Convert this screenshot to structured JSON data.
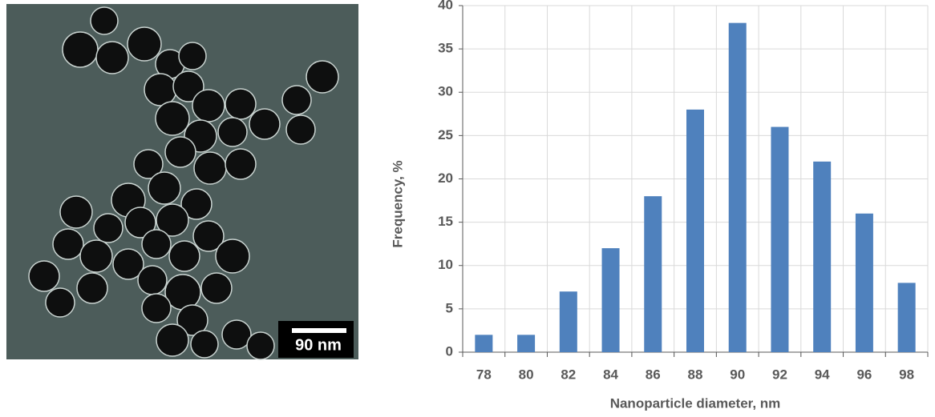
{
  "micrograph": {
    "scale_bar_label": "90 nm"
  },
  "chart_data": {
    "type": "bar",
    "x_label": "Nanoparticle diameter, nm",
    "y_label": "Frequency, %",
    "categories": [
      "78",
      "80",
      "82",
      "84",
      "86",
      "88",
      "90",
      "92",
      "94",
      "96",
      "98"
    ],
    "values": [
      2,
      2,
      7,
      12,
      18,
      28,
      38,
      26,
      22,
      16,
      8
    ],
    "color": "#4f81bd",
    "ylim": [
      0,
      40
    ],
    "yticks": [
      0,
      5,
      10,
      15,
      20,
      25,
      30,
      35,
      40
    ],
    "grid": true
  }
}
